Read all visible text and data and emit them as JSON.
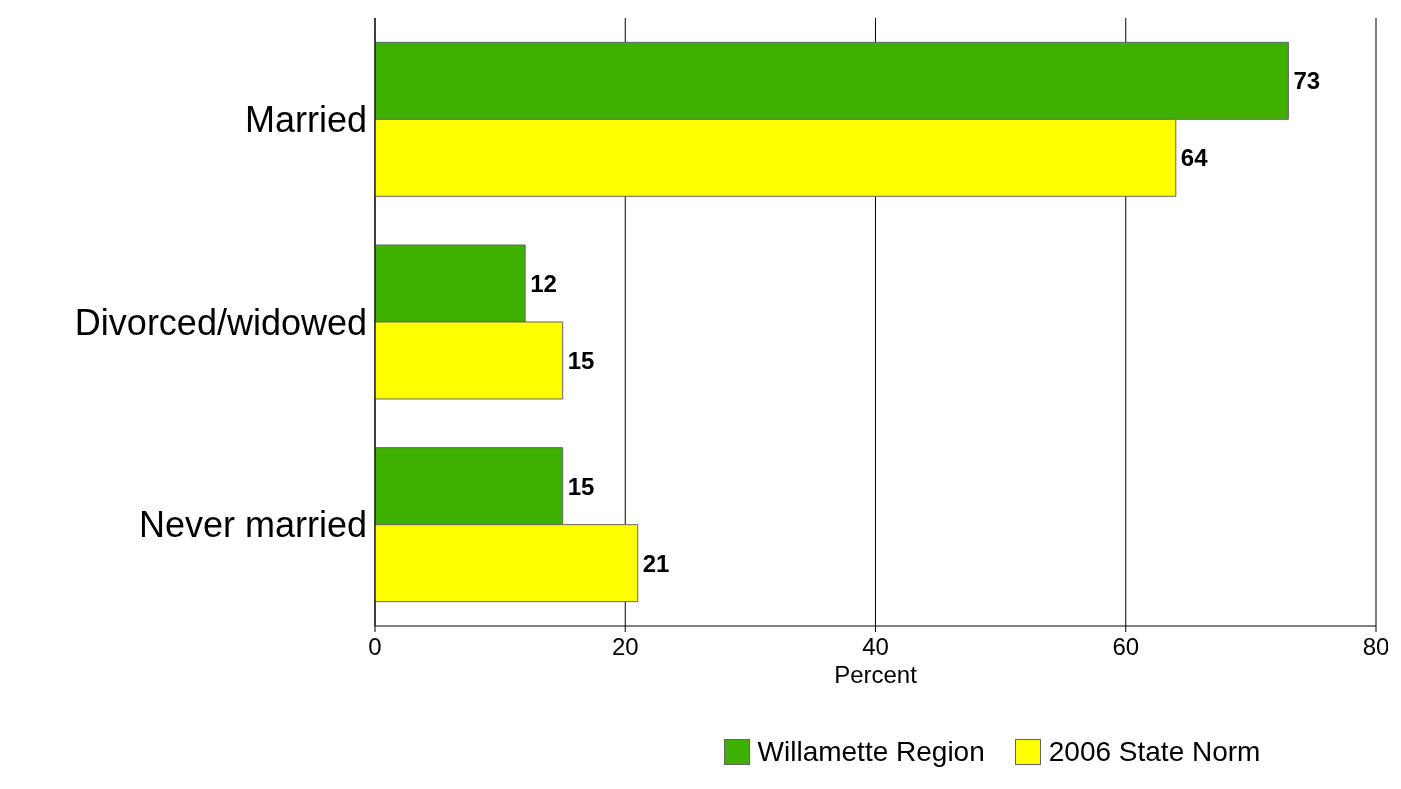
{
  "chart_data": {
    "type": "bar",
    "orientation": "horizontal",
    "categories": [
      "Married",
      "Divorced/widowed",
      "Never married"
    ],
    "series": [
      {
        "name": "Willamette Region",
        "color": "#3faf00",
        "values": [
          73,
          12,
          15
        ]
      },
      {
        "name": "2006 State Norm",
        "color": "#ffff00",
        "values": [
          64,
          15,
          21
        ]
      }
    ],
    "xlim": [
      0,
      80
    ],
    "xticks": [
      0,
      20,
      40,
      60,
      80
    ],
    "xlabel": "Percent",
    "grid": "x",
    "data_labels": true,
    "legend": "bottom"
  }
}
